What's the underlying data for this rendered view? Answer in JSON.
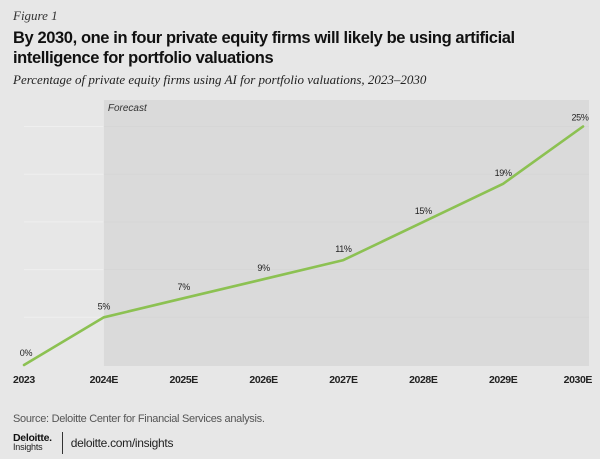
{
  "header": {
    "figure_label": "Figure 1",
    "title": "By 2030, one in four private equity firms will likely be using artificial intelligence for portfolio valuations",
    "subtitle": "Percentage of private equity firms using AI for portfolio valuations, 2023–2030"
  },
  "colors": {
    "background": "#e7e7e7",
    "forecast_region": "#dadada",
    "line": "#8cc152",
    "gridline": "#efefef"
  },
  "chart_data": {
    "type": "line",
    "title": "By 2030, one in four private equity firms will likely be using artificial intelligence for portfolio valuations",
    "subtitle": "Percentage of private equity firms using AI for portfolio valuations, 2023–2030",
    "xlabel": "",
    "ylabel": "",
    "categories": [
      "2023",
      "2024E",
      "2025E",
      "2026E",
      "2027E",
      "2028E",
      "2029E",
      "2030E"
    ],
    "series": [
      {
        "name": "Percentage of private equity firms using AI for portfolio valuations",
        "values": [
          0,
          5,
          7,
          9,
          11,
          15,
          19,
          25
        ],
        "data_labels": [
          "0%",
          "5%",
          "7%",
          "9%",
          "11%",
          "15%",
          "19%",
          "25%"
        ]
      }
    ],
    "ylim": [
      0,
      26
    ],
    "grid": true,
    "annotations": [
      {
        "text": "Forecast",
        "shaded_from": "2024E",
        "shaded_to": "2030E"
      }
    ],
    "legend": "none"
  },
  "footer": {
    "source": "Source: Deloitte Center for Financial Services analysis.",
    "logo_main": "Deloitte.",
    "logo_sub": "Insights",
    "site": "deloitte.com/insights"
  }
}
